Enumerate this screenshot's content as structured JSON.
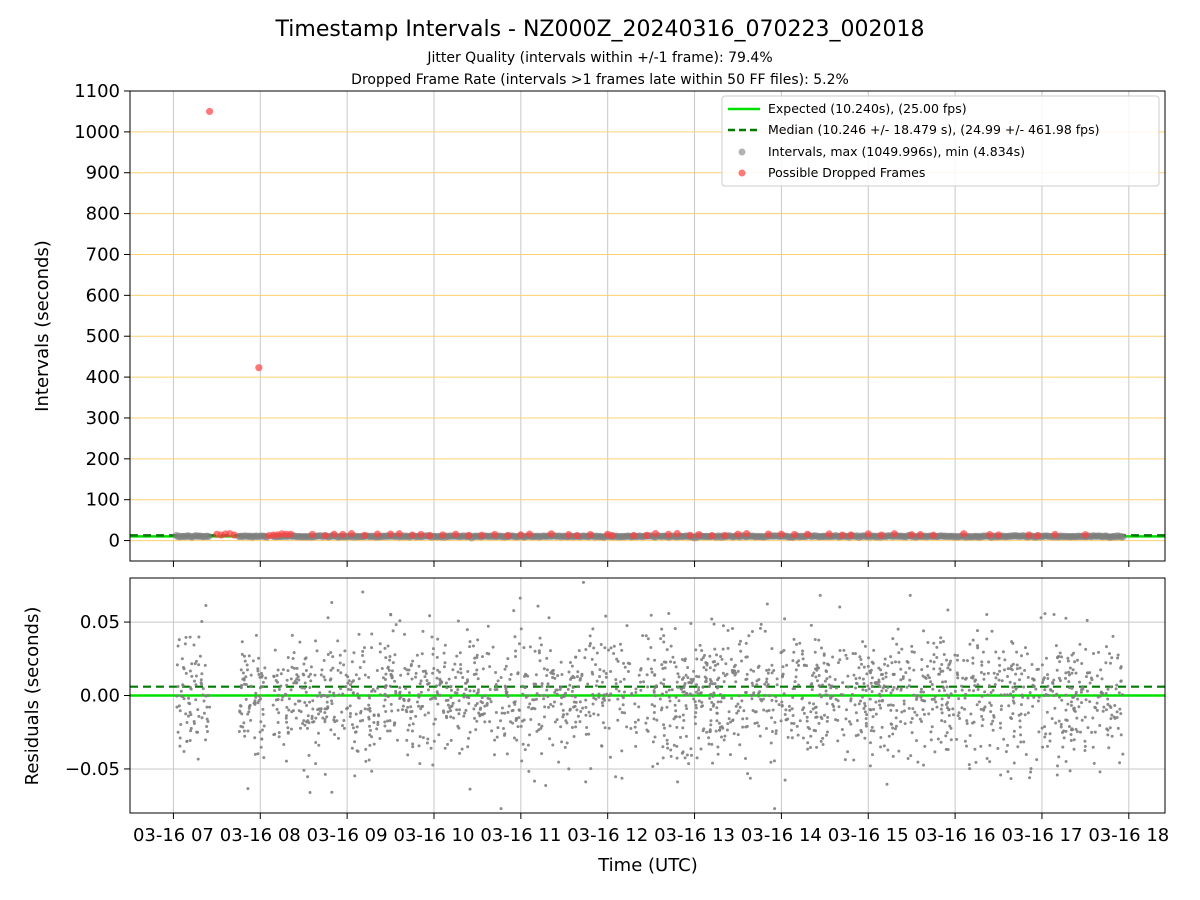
{
  "chart_data": [
    {
      "type": "scatter",
      "title": "Timestamp Intervals - NZ000Z_20240316_070223_002018",
      "subtitle_lines": [
        "Jitter Quality (intervals within +/-1 frame): 79.4%",
        "Dropped Frame Rate (intervals >1 frames late within 50 FF files): 5.2%"
      ],
      "xlabel": "",
      "ylabel": "Intervals (seconds)",
      "ylim": [
        -50,
        1100
      ],
      "yticks": [
        0,
        100,
        200,
        300,
        400,
        500,
        600,
        700,
        800,
        900,
        1000,
        1100
      ],
      "grid": true,
      "legend_position": "top-right",
      "legend": [
        "Expected (10.240s), (25.00 fps)",
        "Median (10.246 +/- 18.479 s), (24.99 +/- 461.98 fps)",
        "Intervals, max (1049.996s), min (4.834s)",
        "Possible Dropped Frames"
      ],
      "lines": [
        {
          "name": "Expected (10.240s), (25.00 fps)",
          "y": 10.24,
          "style": "solid",
          "color": "#00e000"
        },
        {
          "name": "Median (10.246 +/- 18.479 s), (24.99 +/- 461.98 fps)",
          "y": 10.246,
          "style": "dashed",
          "color": "#007a00"
        }
      ],
      "series": [
        {
          "name": "Intervals, max (1049.996s), min (4.834s)",
          "color": "#808080",
          "y_typical": 10.24,
          "ymax": 1049.996,
          "ymin": 4.834
        },
        {
          "name": "Possible Dropped Frames",
          "color": "#ff4040",
          "points": [
            {
              "x": "03-16 07:25",
              "y": 1050.0
            },
            {
              "x": "03-16 07:59",
              "y": 423.0
            }
          ]
        }
      ]
    },
    {
      "type": "scatter",
      "title": "",
      "xlabel": "Time (UTC)",
      "ylabel": "Residuals (seconds)",
      "ylim": [
        -0.08,
        0.08
      ],
      "yticks": [
        -0.05,
        0.0,
        0.05
      ],
      "ytick_labels": [
        "−0.05",
        "0.00",
        "0.05"
      ],
      "xticks": [
        "03-16 07",
        "03-16 08",
        "03-16 09",
        "03-16 10",
        "03-16 11",
        "03-16 12",
        "03-16 13",
        "03-16 14",
        "03-16 15",
        "03-16 16",
        "03-16 17",
        "03-16 18"
      ],
      "xrange_hours": [
        "03-16 06:30",
        "03-16 18:25"
      ],
      "data_xrange": [
        "03-16 07:02",
        "03-16 17:56"
      ],
      "grid": true,
      "lines": [
        {
          "y": 0.0,
          "style": "solid",
          "color": "#00e000"
        },
        {
          "y": 0.006,
          "style": "dashed",
          "color": "#007a00"
        }
      ],
      "series": [
        {
          "name": "Residuals",
          "color": "#808080",
          "points_shown": 2300,
          "spread_sd": 0.022
        }
      ]
    }
  ],
  "colors": {
    "expected": "#00e000",
    "median": "#007a00",
    "intervals": "#808080",
    "dropped": "#ff4040",
    "grid_top": "#ffd070",
    "grid": "#c8c8c8"
  }
}
